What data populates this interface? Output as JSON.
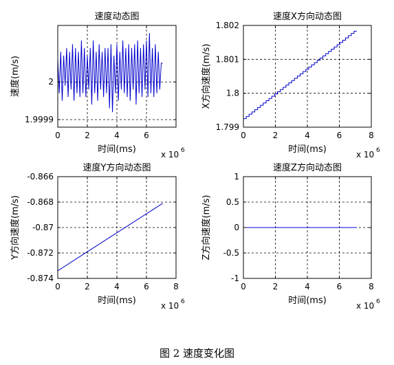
{
  "caption": "图 2  速度变化图",
  "chart_data": [
    {
      "type": "line",
      "title": "速度动态图",
      "xlabel": "时间(ms)",
      "ylabel": "速度(m/s)",
      "x_exponent_label": "x 10",
      "x_exponent": "6",
      "xlim": [
        0,
        8
      ],
      "ylim": [
        1.99988,
        2.00015
      ],
      "xticks": [
        0,
        2,
        4,
        6
      ],
      "xtick_labels": [
        "0",
        "2",
        "4",
        "6"
      ],
      "yticks": [
        1.9999,
        2
      ],
      "ytick_labels": [
        "1.9999",
        "2"
      ],
      "grid": true,
      "series": [
        {
          "color": "#0000cc",
          "x": [
            0.0,
            0.1,
            0.2,
            0.3,
            0.4,
            0.5,
            0.6,
            0.7,
            0.8,
            0.9,
            1.0,
            1.1,
            1.2,
            1.3,
            1.4,
            1.5,
            1.6,
            1.7,
            1.8,
            1.9,
            2.0,
            2.1,
            2.2,
            2.3,
            2.4,
            2.5,
            2.6,
            2.7,
            2.8,
            2.9,
            3.0,
            3.1,
            3.2,
            3.3,
            3.4,
            3.5,
            3.6,
            3.7,
            3.8,
            3.9,
            4.0,
            4.1,
            4.2,
            4.3,
            4.4,
            4.5,
            4.6,
            4.7,
            4.8,
            4.9,
            5.0,
            5.1,
            5.2,
            5.3,
            5.4,
            5.5,
            5.6,
            5.7,
            5.8,
            5.9,
            6.0,
            6.1,
            6.2,
            6.3,
            6.4,
            6.5,
            6.6,
            6.7,
            6.8,
            6.9,
            7.0,
            7.1
          ],
          "y": [
            2.00006,
            1.99997,
            2.00008,
            1.99995,
            2.00007,
            1.99999,
            2.00009,
            1.99996,
            2.00008,
            1.99998,
            2.0001,
            1.99995,
            2.00009,
            1.99997,
            2.00008,
            1.99996,
            2.00011,
            1.99997,
            2.00009,
            1.99996,
            2.00007,
            1.99998,
            2.00009,
            1.99994,
            2.00011,
            1.99997,
            2.00008,
            1.99995,
            2.0001,
            1.99998,
            2.00008,
            1.99996,
            2.00009,
            1.99997,
            2.00009,
            1.99993,
            2.0001,
            1.99992,
            2.00007,
            1.99997,
            2.0001,
            1.99995,
            2.00008,
            1.99998,
            2.00011,
            1.99997,
            2.00009,
            1.99996,
            2.0001,
            1.99995,
            2.00009,
            1.99998,
            2.0001,
            1.99994,
            2.00011,
            1.99997,
            2.00009,
            1.99996,
            2.0001,
            1.99998,
            2.00011,
            1.99996,
            2.00013,
            1.99997,
            2.00009,
            1.99996,
            2.0001,
            1.99997,
            2.00008,
            1.99998,
            2.00005,
            2.00005
          ]
        }
      ]
    },
    {
      "type": "line",
      "title": "速度X方向动态图",
      "xlabel": "时间(ms)",
      "ylabel": "X方向速度(m/s)",
      "x_exponent_label": "x 10",
      "x_exponent": "6",
      "xlim": [
        0,
        8
      ],
      "ylim": [
        1.799,
        1.802
      ],
      "xticks": [
        0,
        2,
        4,
        6,
        8
      ],
      "xtick_labels": [
        "0",
        "2",
        "4",
        "6",
        "8"
      ],
      "yticks": [
        1.799,
        1.8,
        1.801,
        1.802
      ],
      "ytick_labels": [
        "1.799",
        "1.8",
        "1.801",
        "1.802"
      ],
      "grid": true,
      "series": [
        {
          "color": "#0000cc",
          "stepped": true,
          "x": [
            0,
            7.1
          ],
          "y": [
            1.79925,
            1.80183
          ]
        }
      ]
    },
    {
      "type": "line",
      "title": "速度Y方向动态图",
      "xlabel": "时间(ms)",
      "ylabel": "Y方向速度(m/s)",
      "x_exponent_label": "x 10",
      "x_exponent": "6",
      "xlim": [
        0,
        8
      ],
      "ylim": [
        -0.874,
        -0.866
      ],
      "xticks": [
        0,
        2,
        4,
        6,
        8
      ],
      "xtick_labels": [
        "0",
        "2",
        "4",
        "6",
        "8"
      ],
      "yticks": [
        -0.874,
        -0.872,
        -0.87,
        -0.868,
        -0.866
      ],
      "ytick_labels": [
        "-0.874",
        "-0.872",
        "-0.87",
        "-0.868",
        "-0.866"
      ],
      "grid": true,
      "series": [
        {
          "color": "#0000cc",
          "stepped": false,
          "x": [
            0,
            7.1
          ],
          "y": [
            -0.8734,
            -0.8681
          ]
        }
      ]
    },
    {
      "type": "line",
      "title": "速度Z方向动态图",
      "xlabel": "时间(ms)",
      "ylabel": "Z方向速度(m/s)",
      "x_exponent_label": "x 10",
      "x_exponent": "6",
      "xlim": [
        0,
        8
      ],
      "ylim": [
        -1,
        1
      ],
      "xticks": [
        0,
        2,
        4,
        6,
        8
      ],
      "xtick_labels": [
        "0",
        "2",
        "4",
        "6",
        "8"
      ],
      "yticks": [
        -1,
        -0.5,
        0,
        0.5,
        1
      ],
      "ytick_labels": [
        "-1",
        "-0.5",
        "0",
        "0.5",
        "1"
      ],
      "grid": true,
      "series": [
        {
          "color": "#0000cc",
          "stepped": false,
          "x": [
            0,
            7.1
          ],
          "y": [
            0,
            0
          ]
        }
      ]
    }
  ]
}
